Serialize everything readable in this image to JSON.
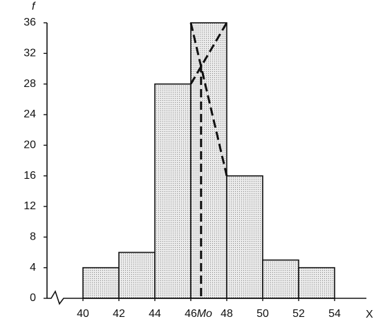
{
  "chart_data": {
    "type": "histogram",
    "y_label": "f",
    "x_label": "X",
    "bins": [
      40,
      42,
      44,
      46,
      48,
      50,
      52,
      54
    ],
    "values": [
      4,
      6,
      28,
      36,
      16,
      5,
      4
    ],
    "color": "#dcdcdc",
    "xlim": [
      38,
      56
    ],
    "ylim": [
      0,
      36
    ],
    "xticks": [
      40,
      42,
      44,
      46,
      48,
      50,
      52,
      54
    ],
    "yticks": [
      0,
      4,
      8,
      12,
      16,
      20,
      24,
      28,
      32,
      36
    ],
    "mode": {
      "value": 46.57,
      "label": "Mo"
    }
  }
}
